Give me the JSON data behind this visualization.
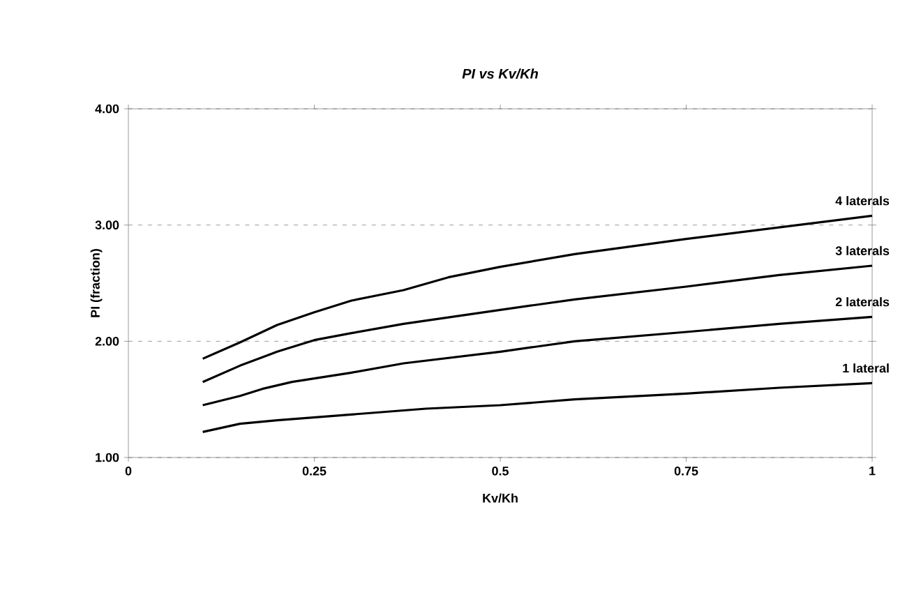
{
  "chart_data": {
    "type": "line",
    "title": "PI vs Kv/Kh",
    "xlabel": "Kv/Kh",
    "ylabel": "PI (fraction)",
    "xlim": [
      0,
      1
    ],
    "xticks": [
      0,
      0.25,
      0.5,
      0.75,
      1
    ],
    "ylim": [
      1,
      4
    ],
    "yticks": [
      {
        "value": 1,
        "label": "1.00"
      },
      {
        "value": 2,
        "label": "2.00"
      },
      {
        "value": 3,
        "label": "3.00"
      },
      {
        "value": 4,
        "label": "4.00"
      }
    ],
    "grid": "y",
    "legend": false,
    "marker": "none",
    "line_style": "solid",
    "series": [
      {
        "name": "4 laterals",
        "color": "#000000",
        "x": [
          0.1,
          0.15,
          0.2,
          0.25,
          0.3,
          0.37,
          0.43,
          0.5,
          0.6,
          0.75,
          0.875,
          1
        ],
        "values": [
          1.85,
          1.99,
          2.14,
          2.25,
          2.35,
          2.44,
          2.55,
          2.64,
          2.75,
          2.88,
          2.98,
          3.08
        ]
      },
      {
        "name": "3 laterals",
        "color": "#000000",
        "x": [
          0.1,
          0.15,
          0.2,
          0.25,
          0.3,
          0.37,
          0.5,
          0.6,
          0.75,
          0.875,
          1
        ],
        "values": [
          1.65,
          1.79,
          1.91,
          2.01,
          2.07,
          2.15,
          2.27,
          2.36,
          2.47,
          2.57,
          2.65
        ]
      },
      {
        "name": "2 laterals",
        "color": "#000000",
        "x": [
          0.1,
          0.15,
          0.18,
          0.22,
          0.3,
          0.37,
          0.5,
          0.6,
          0.75,
          0.875,
          1
        ],
        "values": [
          1.45,
          1.53,
          1.59,
          1.65,
          1.73,
          1.81,
          1.91,
          2.0,
          2.08,
          2.15,
          2.21
        ]
      },
      {
        "name": "1 lateral",
        "color": "#000000",
        "x": [
          0.1,
          0.15,
          0.2,
          0.3,
          0.4,
          0.5,
          0.6,
          0.75,
          0.875,
          1
        ],
        "values": [
          1.22,
          1.29,
          1.32,
          1.37,
          1.42,
          1.45,
          1.5,
          1.55,
          1.6,
          1.64
        ]
      }
    ]
  }
}
